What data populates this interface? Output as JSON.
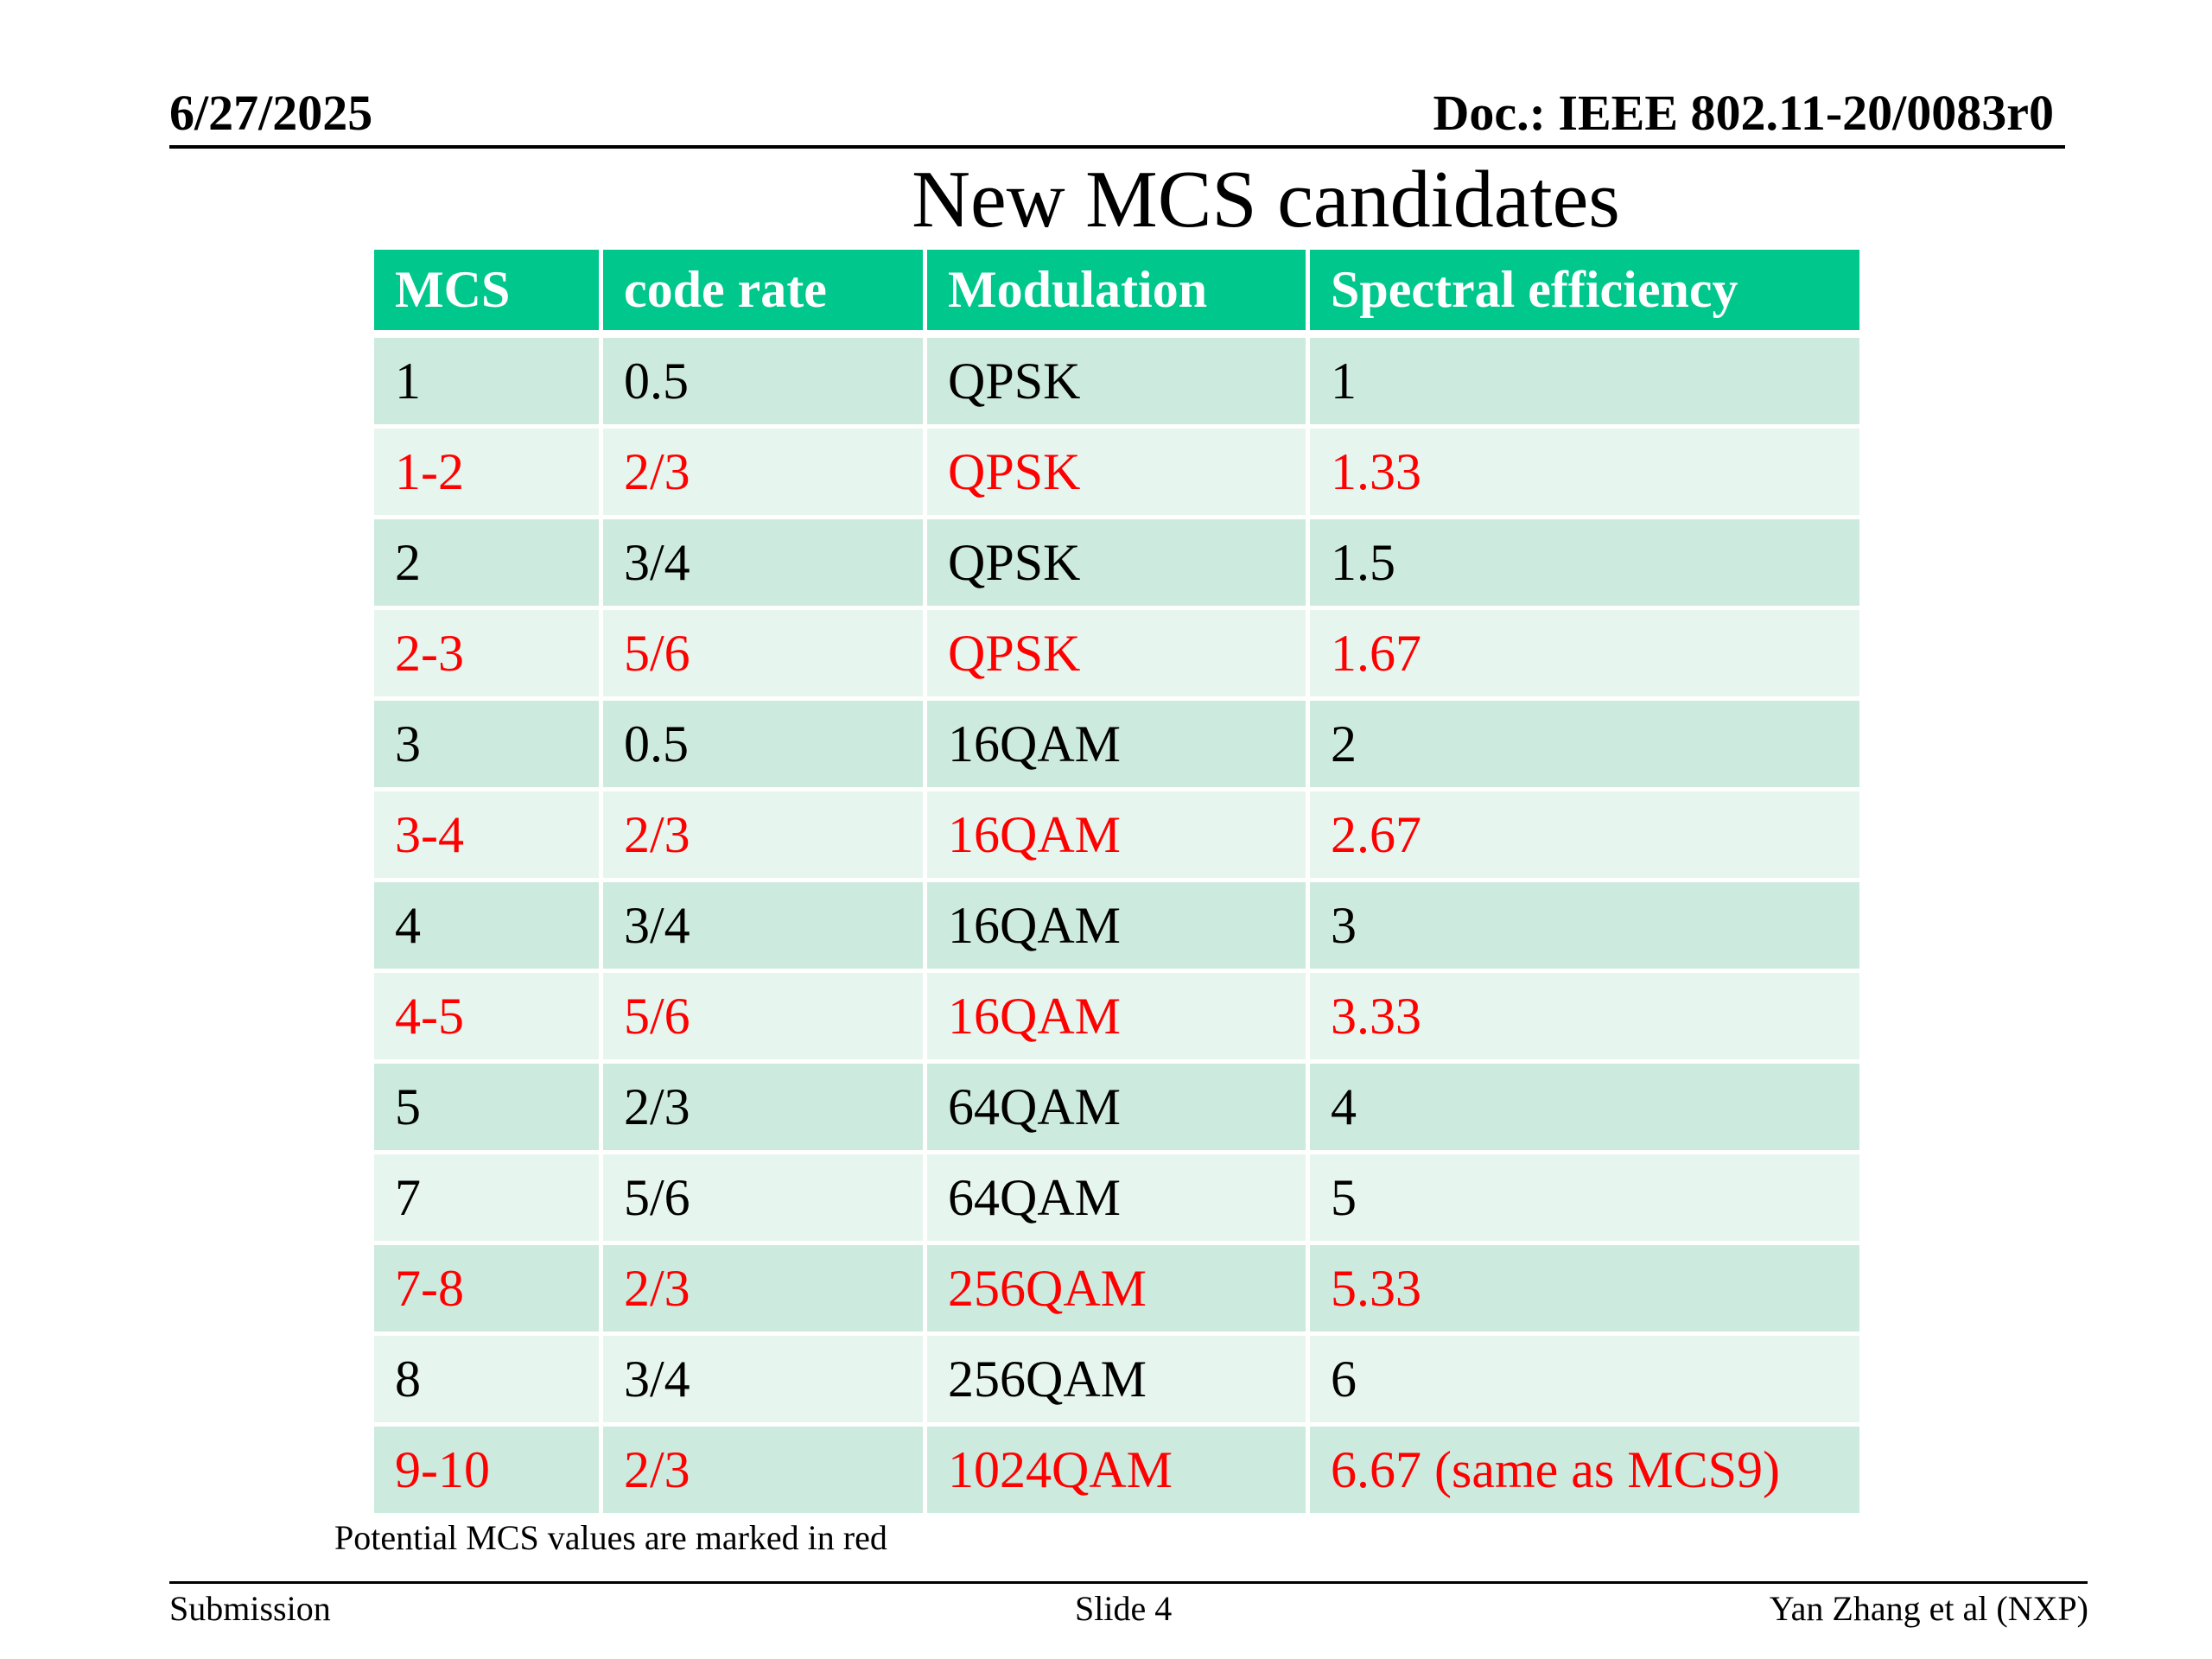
{
  "header": {
    "date": "6/27/2025",
    "doc": "Doc.: IEEE 802.11-20/0083r0"
  },
  "slide": {
    "title": "New MCS candidates"
  },
  "table": {
    "columns": [
      "MCS",
      "code rate",
      "Modulation",
      "Spectral efficiency"
    ],
    "rows": [
      {
        "highlight": false,
        "cells": [
          "1",
          "0.5",
          "QPSK",
          "1"
        ]
      },
      {
        "highlight": true,
        "cells": [
          "1-2",
          "2/3",
          "QPSK",
          "1.33"
        ]
      },
      {
        "highlight": false,
        "cells": [
          "2",
          "3/4",
          "QPSK",
          "1.5"
        ]
      },
      {
        "highlight": true,
        "cells": [
          "2-3",
          "5/6",
          "QPSK",
          "1.67"
        ]
      },
      {
        "highlight": false,
        "cells": [
          "3",
          "0.5",
          "16QAM",
          "2"
        ]
      },
      {
        "highlight": true,
        "cells": [
          "3-4",
          "2/3",
          "16QAM",
          "2.67"
        ]
      },
      {
        "highlight": false,
        "cells": [
          "4",
          "3/4",
          "16QAM",
          "3"
        ]
      },
      {
        "highlight": true,
        "cells": [
          "4-5",
          "5/6",
          "16QAM",
          "3.33"
        ]
      },
      {
        "highlight": false,
        "cells": [
          "5",
          "2/3",
          "64QAM",
          "4"
        ]
      },
      {
        "highlight": false,
        "cells": [
          "7",
          "5/6",
          "64QAM",
          "5"
        ]
      },
      {
        "highlight": true,
        "cells": [
          "7-8",
          "2/3",
          "256QAM",
          "5.33"
        ]
      },
      {
        "highlight": false,
        "cells": [
          "8",
          "3/4",
          "256QAM",
          "6"
        ]
      },
      {
        "highlight": true,
        "cells": [
          "9-10",
          "2/3",
          "1024QAM",
          "6.67 (same as MCS9)"
        ]
      }
    ],
    "note": "Potential MCS values are marked in red"
  },
  "colors": {
    "header_bg": "#00c78c",
    "row_odd": "#cdeadf",
    "row_even": "#e7f5ef",
    "highlight_text": "#ff0000"
  },
  "footer": {
    "left": "Submission",
    "center": "Slide 4",
    "right": "Yan Zhang et al (NXP)"
  }
}
